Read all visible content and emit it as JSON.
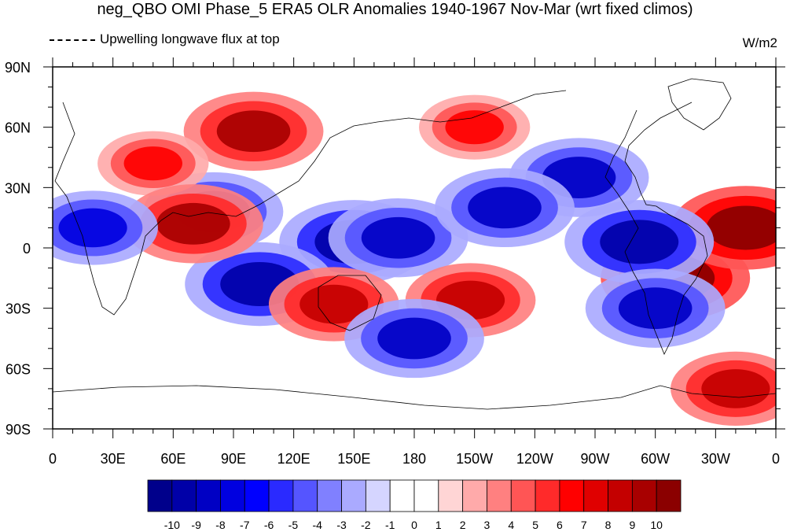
{
  "title": "neg_QBO OMI Phase_5 ERA5 OLR Anomalies 1940-1967 Nov-Mar (wrt fixed climos)",
  "legend_label": "Upwelling longwave flux at top",
  "units": "W/m2",
  "chart_data": {
    "type": "heatmap",
    "projection": "cylindrical equidistant (global map)",
    "title": "neg_QBO OMI Phase_5 ERA5 OLR Anomalies 1940-1967 Nov-Mar (wrt fixed climos)",
    "subtitle": "Upwelling longwave flux at top",
    "units": "W/m2",
    "x_ticks": [
      "0",
      "30E",
      "60E",
      "90E",
      "120E",
      "150E",
      "180",
      "150W",
      "120W",
      "90W",
      "60W",
      "30W",
      "0"
    ],
    "x_values": [
      0,
      30,
      60,
      90,
      120,
      150,
      180,
      210,
      240,
      270,
      300,
      330,
      360
    ],
    "y_ticks": [
      "90N",
      "60N",
      "30N",
      "0",
      "30S",
      "60S",
      "90S"
    ],
    "y_values": [
      90,
      60,
      30,
      0,
      -30,
      -60,
      -90
    ],
    "xlim": [
      0,
      360
    ],
    "ylim": [
      -90,
      90
    ],
    "grid": false,
    "colorbar": {
      "labels": [
        "-10",
        "-9",
        "-8",
        "-7",
        "-6",
        "-5",
        "-4",
        "-3",
        "-2",
        "-1",
        "0",
        "1",
        "2",
        "3",
        "4",
        "5",
        "6",
        "7",
        "8",
        "9",
        "10"
      ],
      "colors": [
        "#00008b",
        "#0000a8",
        "#0000c4",
        "#0000e0",
        "#0000ff",
        "#2a2aff",
        "#5555ff",
        "#8080ff",
        "#aaaaff",
        "#d5d5ff",
        "#ffffff",
        "#ffffff",
        "#ffd5d5",
        "#ffaaaa",
        "#ff8080",
        "#ff5555",
        "#ff2a2a",
        "#ff0000",
        "#e00000",
        "#c40000",
        "#a80000",
        "#8b0000"
      ],
      "placement": "bottom"
    },
    "anomaly_features": [
      {
        "lon": 100,
        "lat": 58,
        "value": 9
      },
      {
        "lon": 150,
        "lat": 3,
        "value": -10
      },
      {
        "lon": 172,
        "lat": 5,
        "value": -9
      },
      {
        "lon": 310,
        "lat": -15,
        "value": 10
      },
      {
        "lon": 345,
        "lat": 10,
        "value": 10
      },
      {
        "lon": 292,
        "lat": 3,
        "value": -10
      },
      {
        "lon": 262,
        "lat": 35,
        "value": -9
      },
      {
        "lon": 225,
        "lat": 20,
        "value": -9
      },
      {
        "lon": 210,
        "lat": 60,
        "value": 6
      },
      {
        "lon": 80,
        "lat": 18,
        "value": -9
      },
      {
        "lon": 50,
        "lat": 42,
        "value": 6
      },
      {
        "lon": 103,
        "lat": -18,
        "value": -10
      },
      {
        "lon": 140,
        "lat": -28,
        "value": 8
      },
      {
        "lon": 208,
        "lat": -26,
        "value": 8
      },
      {
        "lon": 180,
        "lat": -45,
        "value": -9
      },
      {
        "lon": 300,
        "lat": -30,
        "value": -9
      },
      {
        "lon": 70,
        "lat": 12,
        "value": 9
      },
      {
        "lon": 20,
        "lat": 10,
        "value": -8
      },
      {
        "lon": 340,
        "lat": -70,
        "value": 8
      }
    ]
  }
}
